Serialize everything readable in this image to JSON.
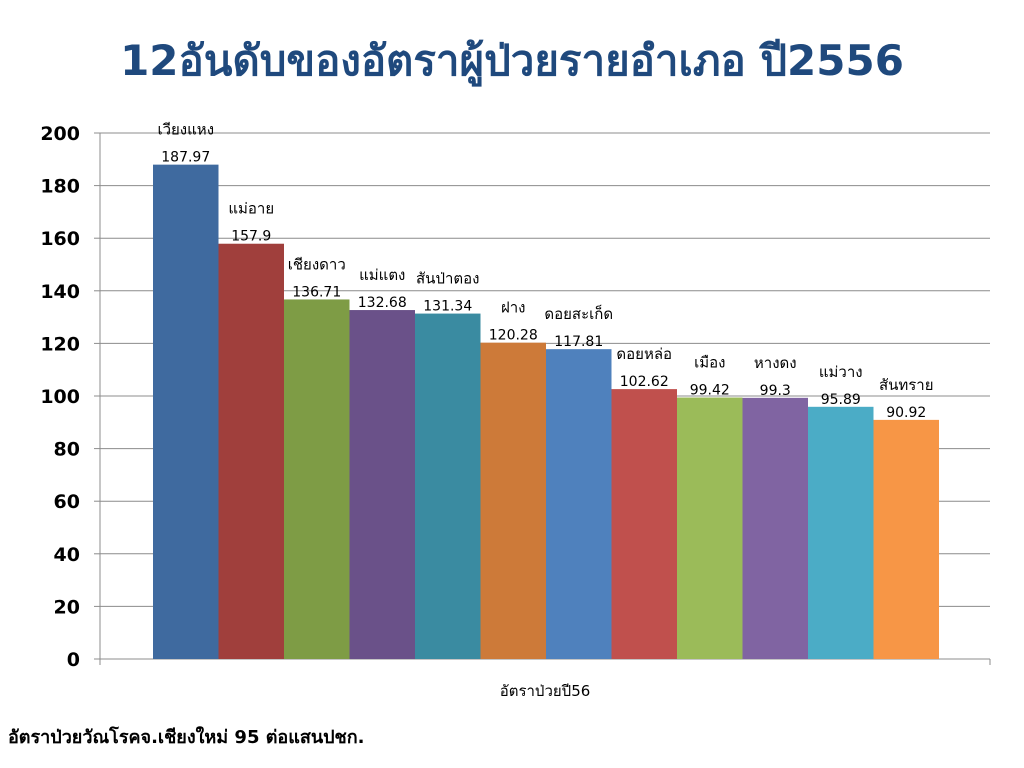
{
  "slide": {
    "title": "12อันดับของอัตราผู้ป่วยรายอำเภอ ปี2556",
    "footnote": "อัตราป่วยวัณโรคจ.เชียงใหม่ 95 ต่อแสนปชก."
  },
  "chart_data": {
    "type": "bar",
    "title": "12อันดับของอัตราผู้ป่วยรายอำเภอ ปี2556",
    "xlabel": "อัตราป่วยปี56",
    "ylabel": "",
    "ylim": [
      0,
      200
    ],
    "yticks": [
      0,
      20,
      40,
      60,
      80,
      100,
      120,
      140,
      160,
      180,
      200
    ],
    "grid": true,
    "legend": "none",
    "categories": [
      "เวียงแหง",
      "แม่อาย",
      "เชียงดาว",
      "แม่แตง",
      "สันป่าตอง",
      "ฝาง",
      "ดอยสะเก็ด",
      "ดอยหล่อ",
      "เมือง",
      "หางดง",
      "แม่วาง",
      "สันทราย"
    ],
    "values": [
      187.97,
      157.9,
      136.71,
      132.68,
      131.34,
      120.28,
      117.81,
      102.62,
      99.42,
      99.3,
      95.89,
      90.92
    ],
    "value_labels": [
      "187.97",
      "157.9",
      "136.71",
      "132.68",
      "131.34",
      "120.28",
      "117.81",
      "102.62",
      "99.42",
      "99.3",
      "95.89",
      "90.92"
    ],
    "colors": [
      "#3f6a9f",
      "#a03f3c",
      "#7e9c45",
      "#6a5189",
      "#3a8ba1",
      "#cd7a39",
      "#4f81bd",
      "#c0504d",
      "#9bbb59",
      "#8064a2",
      "#4bacc6",
      "#f79646"
    ]
  }
}
